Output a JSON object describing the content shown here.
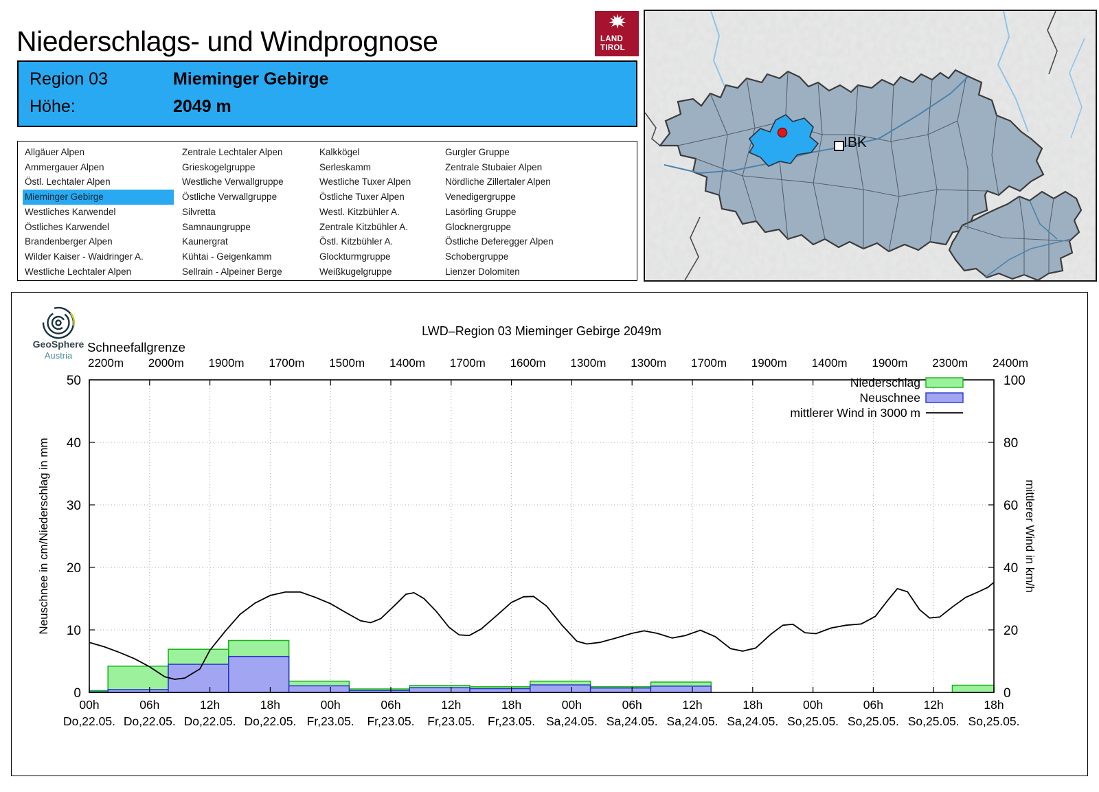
{
  "header": {
    "title": "Niederschlags- und Windprognose"
  },
  "tirol_logo": {
    "line1": "LAND",
    "line2": "TIROL"
  },
  "region_box": {
    "region_label": "Region 03",
    "region_name": "Mieminger Gebirge",
    "altitude_label": "Höhe:",
    "altitude_value": "2049 m"
  },
  "region_list": {
    "selected": "Mieminger Gebirge",
    "columns": [
      [
        "Allgäuer Alpen",
        "Ammergauer Alpen",
        "Östl. Lechtaler Alpen",
        "Mieminger Gebirge",
        "Westliches Karwendel",
        "Östliches Karwendel",
        "Brandenberger Alpen",
        "Wilder Kaiser - Waidringer A.",
        "Westliche Lechtaler Alpen"
      ],
      [
        "Zentrale Lechtaler Alpen",
        "Grieskogelgruppe",
        "Westliche Verwallgruppe",
        "Östliche Verwallgruppe",
        "Silvretta",
        "Samnaungruppe",
        "Kaunergrat",
        "Kühtai - Geigenkamm",
        "Sellrain - Alpeiner Berge"
      ],
      [
        "Kalkkögel",
        "Serleskamm",
        "Westliche Tuxer Alpen",
        "Östliche Tuxer Alpen",
        "Westl. Kitzbühler A.",
        "Zentrale Kitzbühler A.",
        "Östl. Kitzbühler A.",
        "Glockturmgruppe",
        "Weißkugelgruppe"
      ],
      [
        "Gurgler Gruppe",
        "Zentrale Stubaier Alpen",
        "Nördliche Zillertaler Alpen",
        "Venedigergruppe",
        "Lasörling Gruppe",
        "Glocknergruppe",
        "Östliche Deferegger Alpen",
        "Schobergruppe",
        "Lienzer Dolomiten"
      ]
    ]
  },
  "map": {
    "city_label": "IBK"
  },
  "geosphere_logo": {
    "name": "GeoSphere",
    "country": "Austria"
  },
  "colors": {
    "accent_blue": "#29a9f1",
    "tirol_red": "#a6132e",
    "map_region_fill": "#9db0c2",
    "map_highlight": "#29a9f1",
    "marker_red": "#e01818"
  },
  "chart_data": {
    "type": "bar+line",
    "title": "LWD–Region 03 Mieminger Gebirge 2049m",
    "snowline": {
      "label": "Schneefallgrenze",
      "values": [
        "2200m",
        "2000m",
        "1900m",
        "1700m",
        "1500m",
        "1400m",
        "1700m",
        "1600m",
        "1300m",
        "1300m",
        "1700m",
        "1900m",
        "1400m",
        "1900m",
        "2300m",
        "2400m"
      ]
    },
    "ylabel_left": "Neuschnee in cm/Niederschlag in mm",
    "ylabel_right": "mittlerer Wind in km/h",
    "ylim_left": [
      0,
      50
    ],
    "ylim_right": [
      0,
      100
    ],
    "yticks_left": [
      0,
      10,
      20,
      30,
      40,
      50
    ],
    "yticks_right": [
      0,
      20,
      40,
      60,
      80,
      100
    ],
    "x_hours_total": 90,
    "x_ticks": {
      "times": [
        "00h",
        "06h",
        "12h",
        "18h",
        "00h",
        "06h",
        "12h",
        "18h",
        "00h",
        "06h",
        "12h",
        "18h",
        "00h",
        "06h",
        "12h",
        "18h"
      ],
      "dates": [
        "Do,22.05.",
        "Do,22.05.",
        "Do,22.05.",
        "Do,22.05.",
        "Fr,23.05.",
        "Fr,23.05.",
        "Fr,23.05.",
        "Fr,23.05.",
        "Sa,24.05.",
        "Sa,24.05.",
        "Sa,24.05.",
        "Sa,24.05.",
        "So,25.05.",
        "So,25.05.",
        "So,25.05.",
        "So,25.05."
      ]
    },
    "legend": [
      {
        "label": "Niederschlag",
        "type": "box",
        "fill": "#9cf29c",
        "stroke": "#16b016"
      },
      {
        "label": "Neuschnee",
        "type": "box",
        "fill": "#a2a6f2",
        "stroke": "#2633cc"
      },
      {
        "label": "mittlerer Wind in 3000 m",
        "type": "line",
        "stroke": "#000000"
      }
    ],
    "bar_offset_fraction": 0.31,
    "niederschlag_mm": [
      0.3,
      4.2,
      6.9,
      8.3,
      1.8,
      0.55,
      1.1,
      0.9,
      1.8,
      0.9,
      1.65,
      0,
      0,
      0,
      0,
      1.15
    ],
    "neuschnee_cm": [
      0.1,
      0.45,
      4.5,
      5.75,
      1.05,
      0.3,
      0.75,
      0.6,
      1.2,
      0.7,
      1.0,
      0,
      0,
      0,
      0,
      0
    ],
    "wind_kmh": [
      [
        0,
        16
      ],
      [
        1.5,
        14.6
      ],
      [
        3,
        12.8
      ],
      [
        4.5,
        10.8
      ],
      [
        6,
        8.2
      ],
      [
        7.5,
        5.0
      ],
      [
        8.5,
        4.2
      ],
      [
        9.5,
        4.6
      ],
      [
        11,
        7.5
      ],
      [
        12,
        13.5
      ],
      [
        13.5,
        19.5
      ],
      [
        15,
        25
      ],
      [
        16.5,
        28.6
      ],
      [
        18,
        31
      ],
      [
        19.5,
        32.1
      ],
      [
        21,
        32.1
      ],
      [
        22.5,
        30.4
      ],
      [
        24,
        28.4
      ],
      [
        25.5,
        25.6
      ],
      [
        27,
        22.9
      ],
      [
        28,
        22.3
      ],
      [
        29,
        23.6
      ],
      [
        30.5,
        28.2
      ],
      [
        31.5,
        31.4
      ],
      [
        32.3,
        31.9
      ],
      [
        33.3,
        30
      ],
      [
        34.5,
        26
      ],
      [
        35.8,
        20.8
      ],
      [
        36.8,
        18.4
      ],
      [
        37.8,
        18.2
      ],
      [
        39,
        20.3
      ],
      [
        40.5,
        24.5
      ],
      [
        42,
        28.8
      ],
      [
        43.2,
        30.6
      ],
      [
        44.2,
        30.7
      ],
      [
        45.5,
        27.6
      ],
      [
        47,
        21.6
      ],
      [
        48.5,
        16.4
      ],
      [
        49.5,
        15.5
      ],
      [
        50.8,
        16
      ],
      [
        52.3,
        17.3
      ],
      [
        54,
        18.9
      ],
      [
        55.2,
        19.7
      ],
      [
        56.5,
        18.9
      ],
      [
        58,
        17.4
      ],
      [
        59.3,
        18.2
      ],
      [
        60.8,
        19.9
      ],
      [
        62.3,
        17.8
      ],
      [
        63.8,
        14
      ],
      [
        65,
        13.2
      ],
      [
        66.3,
        14.2
      ],
      [
        67.8,
        18.6
      ],
      [
        69,
        21.5
      ],
      [
        70,
        21.8
      ],
      [
        71.2,
        19.1
      ],
      [
        72.3,
        18.8
      ],
      [
        73.8,
        20.6
      ],
      [
        75.3,
        21.5
      ],
      [
        76.8,
        21.9
      ],
      [
        78.2,
        24.3
      ],
      [
        79.4,
        29.3
      ],
      [
        80.4,
        33.2
      ],
      [
        81.4,
        32.2
      ],
      [
        82.6,
        26.5
      ],
      [
        83.6,
        23.8
      ],
      [
        84.6,
        24.1
      ],
      [
        85.9,
        27.4
      ],
      [
        87.2,
        30.4
      ],
      [
        88.4,
        32.1
      ],
      [
        89.4,
        33.6
      ],
      [
        90,
        35.2
      ]
    ]
  }
}
